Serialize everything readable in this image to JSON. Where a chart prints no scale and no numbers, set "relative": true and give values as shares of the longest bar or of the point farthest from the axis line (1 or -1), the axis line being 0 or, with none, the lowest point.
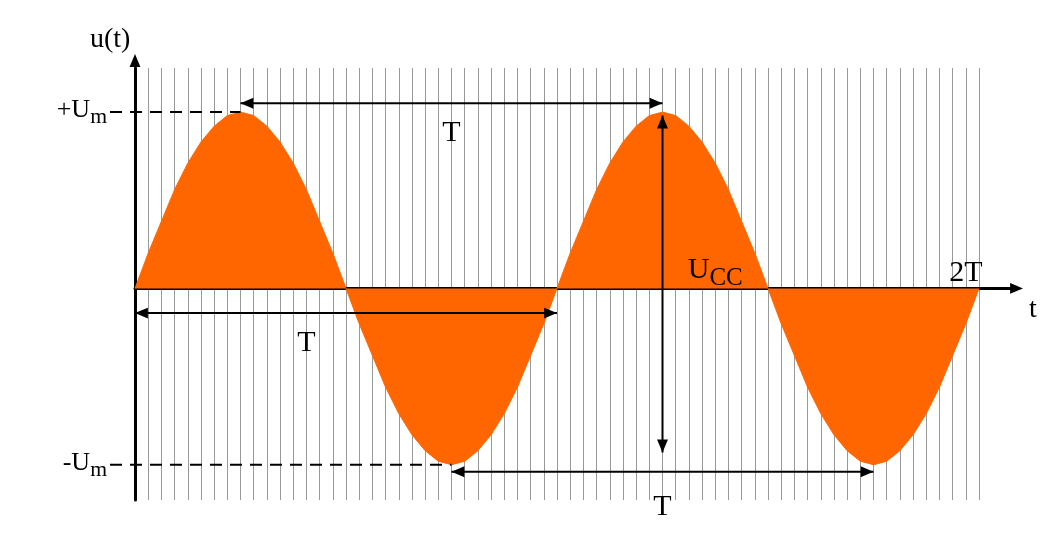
{
  "chart_data": {
    "type": "area",
    "relative": true,
    "xlabel": "t",
    "ylabel": "u(t)",
    "color": "#ff6600",
    "grid": "x",
    "categories": [
      null,
      null,
      null,
      null,
      null,
      null,
      null,
      null,
      null,
      null,
      null,
      null,
      null,
      null,
      null,
      null,
      null,
      null,
      null,
      null,
      null,
      null,
      null,
      null,
      null,
      null,
      null,
      null,
      null,
      null,
      null,
      null,
      null,
      null,
      null,
      null,
      null,
      null,
      null,
      null,
      null,
      null,
      null,
      null,
      null,
      null,
      null,
      null,
      null,
      null,
      null,
      null,
      null,
      null,
      null,
      null,
      null,
      null,
      null,
      null,
      null,
      null,
      null,
      null,
      null
    ],
    "values": [
      0,
      0.2,
      0.38,
      0.56,
      0.71,
      0.83,
      0.92,
      0.98,
      1,
      0.98,
      0.92,
      0.83,
      0.71,
      0.56,
      0.38,
      0.2,
      0,
      -0.2,
      -0.38,
      -0.56,
      -0.71,
      -0.83,
      -0.92,
      -0.98,
      -1,
      -0.98,
      -0.92,
      -0.83,
      -0.71,
      -0.56,
      -0.38,
      -0.2,
      0,
      0.2,
      0.38,
      0.56,
      0.71,
      0.83,
      0.92,
      0.98,
      1,
      0.98,
      0.92,
      0.83,
      0.71,
      0.56,
      0.38,
      0.2,
      0,
      -0.2,
      -0.38,
      -0.56,
      -0.71,
      -0.83,
      -0.92,
      -0.98,
      -1,
      -0.98,
      -0.92,
      -0.83,
      -0.71,
      -0.56,
      -0.38,
      -0.2,
      0
    ],
    "annotations": [
      "T",
      "T",
      "T",
      "U$_{CC}$",
      "2T",
      "+U$_{m}$",
      "-U$_{m}$"
    ]
  }
}
